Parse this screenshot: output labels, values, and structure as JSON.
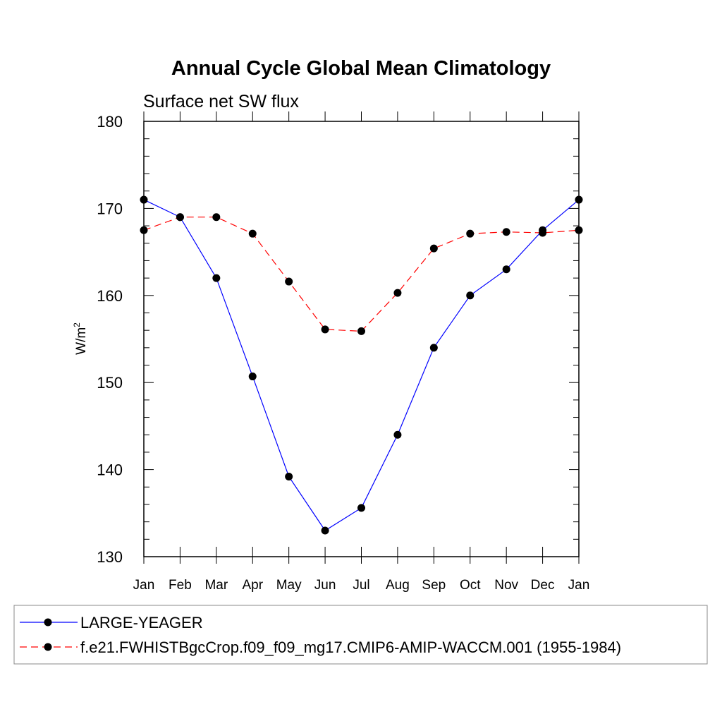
{
  "chart_data": {
    "type": "line",
    "title": "Annual Cycle Global Mean Climatology",
    "subtitle": "Surface net SW flux",
    "xlabel": "",
    "ylabel": "W/m",
    "ylabel_superscript": "2",
    "categories": [
      "Jan",
      "Feb",
      "Mar",
      "Apr",
      "May",
      "Jun",
      "Jul",
      "Aug",
      "Sep",
      "Oct",
      "Nov",
      "Dec",
      "Jan"
    ],
    "ylim": [
      130,
      180
    ],
    "yticks": [
      "130",
      "140",
      "150",
      "160",
      "170",
      "180"
    ],
    "grid": false,
    "legend_position": "bottom",
    "series": [
      {
        "name": "LARGE-YEAGER",
        "color": "#0000ff",
        "dash": "solid",
        "marker": "dot",
        "values": [
          171.0,
          169.0,
          162.0,
          150.7,
          139.2,
          133.0,
          135.6,
          144.0,
          154.0,
          160.0,
          163.0,
          167.5,
          171.0
        ]
      },
      {
        "name": "f.e21.FWHISTBgcCrop.f09_f09_mg17.CMIP6-AMIP-WACCM.001 (1955-1984)",
        "color": "#ff0000",
        "dash": "dashed",
        "marker": "dot",
        "values": [
          167.5,
          169.0,
          169.0,
          167.1,
          161.6,
          156.1,
          155.9,
          160.3,
          165.4,
          167.1,
          167.3,
          167.2,
          167.5
        ]
      }
    ]
  }
}
